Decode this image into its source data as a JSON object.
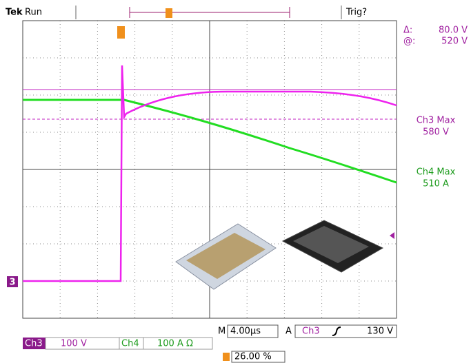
{
  "header": {
    "brand": "Tek",
    "state": "Run",
    "trigger_status": "Trig?"
  },
  "cursor": {
    "delta_label": "Δ:",
    "delta_value": "80.0 V",
    "at_label": "@:",
    "at_value": "520 V"
  },
  "measurements": [
    {
      "label": "Ch3 Max",
      "value": "580 V"
    },
    {
      "label": "Ch4 Max",
      "value": "510 A"
    }
  ],
  "channel_marker": "3",
  "timebase": {
    "label": "M",
    "value": "4.00µs"
  },
  "trigger": {
    "label": "A",
    "source": "Ch3",
    "level": "130 V"
  },
  "channels": [
    {
      "name": "Ch3",
      "scale": "100 V"
    },
    {
      "name": "Ch4",
      "scale": "100 A Ω"
    }
  ],
  "trigger_position": "26.00 %"
}
